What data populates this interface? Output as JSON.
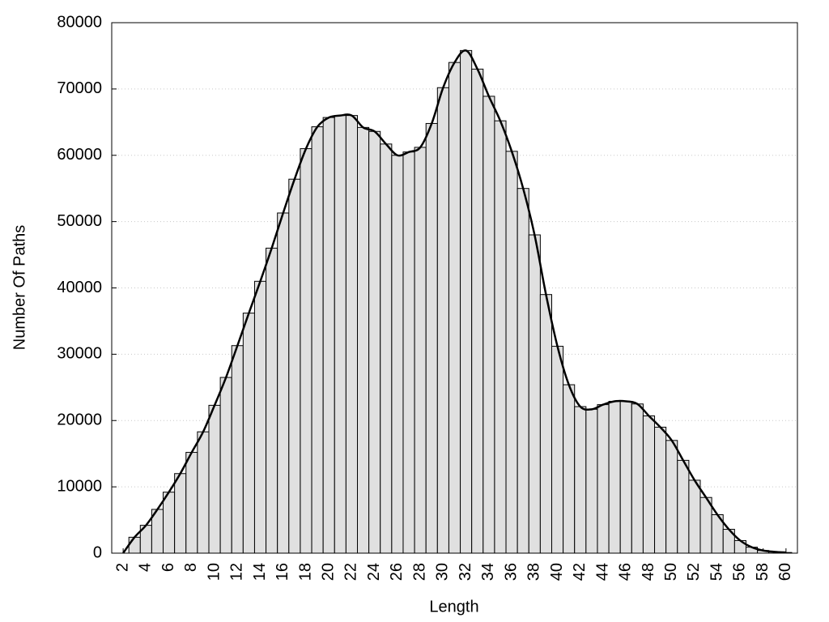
{
  "chart_data": {
    "type": "bar",
    "x_label": "Length",
    "y_label": "Number Of Paths",
    "x": [
      2,
      3,
      4,
      5,
      6,
      7,
      8,
      9,
      10,
      11,
      12,
      13,
      14,
      15,
      16,
      17,
      18,
      19,
      20,
      21,
      22,
      23,
      24,
      25,
      26,
      27,
      28,
      29,
      30,
      31,
      32,
      33,
      34,
      35,
      36,
      37,
      38,
      39,
      40,
      41,
      42,
      43,
      44,
      45,
      46,
      47,
      48,
      49,
      50,
      51,
      52,
      53,
      54,
      55,
      56,
      57,
      58,
      59,
      60
    ],
    "values": [
      0,
      2400,
      4200,
      6600,
      9200,
      12000,
      15200,
      18300,
      22300,
      26500,
      31300,
      36200,
      41000,
      46000,
      51300,
      56400,
      61000,
      64300,
      65700,
      66000,
      66000,
      64200,
      63600,
      61700,
      60000,
      60500,
      61200,
      64800,
      70200,
      74000,
      75800,
      73000,
      68900,
      65200,
      60600,
      55000,
      48000,
      39000,
      31200,
      25400,
      22100,
      21700,
      22400,
      22900,
      22900,
      22500,
      20700,
      19000,
      17000,
      14000,
      11000,
      8400,
      5800,
      3600,
      1900,
      900,
      400,
      200,
      100
    ],
    "color": "#e0e0e0",
    "line_color": "#000000",
    "smooth_line": true,
    "xlim": [
      1,
      61
    ],
    "ylim": [
      0,
      80000
    ],
    "xticks": [
      2,
      4,
      6,
      8,
      10,
      12,
      14,
      16,
      18,
      20,
      22,
      24,
      26,
      28,
      30,
      32,
      34,
      36,
      38,
      40,
      42,
      44,
      46,
      48,
      50,
      52,
      54,
      56,
      58,
      60
    ],
    "yticks": [
      0,
      10000,
      20000,
      30000,
      40000,
      50000,
      60000,
      70000,
      80000
    ],
    "grid": true
  }
}
